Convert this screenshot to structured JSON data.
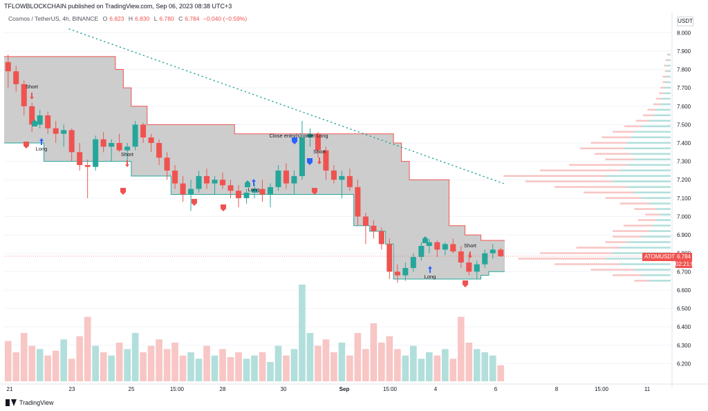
{
  "header": {
    "publisher": "TFLOWBLOCKCHAIN published on TradingView.com, Sep 06, 2023 08:38 UTC+3"
  },
  "symbol_bar": {
    "name": "Cosmos / TetherUS, 4h, BINANCE",
    "o_label": "O",
    "o_value": "6.823",
    "h_label": "H",
    "h_value": "6.830",
    "l_label": "L",
    "l_value": "6.780",
    "c_label": "C",
    "c_value": "6.784",
    "change": "−0.040 (−0.59%)"
  },
  "currency": "USDT",
  "price_tag": {
    "symbol": "ATOMUSDT",
    "price": "6.784",
    "countdown": "02:21:54"
  },
  "footer": {
    "brand": "TradingView"
  },
  "colors": {
    "up": "#26a69a",
    "down": "#ef5350",
    "channel_fill": "#c4c4c4",
    "trend_dots": "#26a69a",
    "vol_up": "#b2dfdb",
    "vol_down": "#f7c6c5"
  },
  "chart_data": {
    "type": "candlestick",
    "y_axis": {
      "range": [
        6.1,
        8.05
      ],
      "ticks": [
        "8.000",
        "7.900",
        "7.800",
        "7.700",
        "7.600",
        "7.500",
        "7.400",
        "7.300",
        "7.200",
        "7.100",
        "7.000",
        "6.900",
        "6.800",
        "6.700",
        "6.600",
        "6.500",
        "6.400",
        "6.300",
        "6.200"
      ]
    },
    "x_axis": {
      "tick_labels": [
        "21",
        "23",
        "25",
        "15:00",
        "28",
        "30",
        "Sep",
        "15:00",
        "4",
        "6",
        "8",
        "15:00",
        "11"
      ]
    },
    "annotations": [
      "Short",
      "Long",
      "Short",
      "Long",
      "Close entry(s) order Long",
      "Short",
      "Long",
      "Short"
    ],
    "candles": [
      [
        7.84,
        7.88,
        7.7,
        7.79
      ],
      [
        7.79,
        7.82,
        7.68,
        7.72
      ],
      [
        7.72,
        7.74,
        7.55,
        7.6
      ],
      [
        7.6,
        7.62,
        7.46,
        7.5
      ],
      [
        7.5,
        7.58,
        7.48,
        7.55
      ],
      [
        7.55,
        7.57,
        7.45,
        7.48
      ],
      [
        7.48,
        7.52,
        7.4,
        7.45
      ],
      [
        7.45,
        7.5,
        7.38,
        7.47
      ],
      [
        7.47,
        7.48,
        7.3,
        7.35
      ],
      [
        7.35,
        7.4,
        7.25,
        7.28
      ],
      [
        7.28,
        7.31,
        7.1,
        7.27
      ],
      [
        7.27,
        7.44,
        7.25,
        7.42
      ],
      [
        7.42,
        7.46,
        7.35,
        7.38
      ],
      [
        7.38,
        7.42,
        7.3,
        7.4
      ],
      [
        7.4,
        7.45,
        7.35,
        7.36
      ],
      [
        7.36,
        7.4,
        7.28,
        7.38
      ],
      [
        7.38,
        7.52,
        7.36,
        7.5
      ],
      [
        7.5,
        7.51,
        7.4,
        7.43
      ],
      [
        7.43,
        7.45,
        7.35,
        7.4
      ],
      [
        7.4,
        7.42,
        7.28,
        7.32
      ],
      [
        7.32,
        7.35,
        7.2,
        7.25
      ],
      [
        7.25,
        7.28,
        7.15,
        7.18
      ],
      [
        7.18,
        7.22,
        7.08,
        7.12
      ],
      [
        7.12,
        7.2,
        7.03,
        7.15
      ],
      [
        7.15,
        7.25,
        7.13,
        7.22
      ],
      [
        7.22,
        7.26,
        7.15,
        7.18
      ],
      [
        7.18,
        7.22,
        7.12,
        7.2
      ],
      [
        7.2,
        7.24,
        7.15,
        7.17
      ],
      [
        7.17,
        7.2,
        7.1,
        7.14
      ],
      [
        7.14,
        7.17,
        7.05,
        7.1
      ],
      [
        7.1,
        7.15,
        7.07,
        7.13
      ],
      [
        7.13,
        7.18,
        7.1,
        7.15
      ],
      [
        7.15,
        7.2,
        7.08,
        7.12
      ],
      [
        7.12,
        7.18,
        7.05,
        7.16
      ],
      [
        7.16,
        7.28,
        7.14,
        7.25
      ],
      [
        7.25,
        7.29,
        7.15,
        7.18
      ],
      [
        7.18,
        7.25,
        7.12,
        7.22
      ],
      [
        7.22,
        7.52,
        7.2,
        7.43
      ],
      [
        7.43,
        7.48,
        7.38,
        7.45
      ],
      [
        7.45,
        7.46,
        7.32,
        7.36
      ],
      [
        7.36,
        7.38,
        7.2,
        7.25
      ],
      [
        7.25,
        7.28,
        7.18,
        7.2
      ],
      [
        7.2,
        7.25,
        7.1,
        7.22
      ],
      [
        7.22,
        7.26,
        7.14,
        7.16
      ],
      [
        7.16,
        7.2,
        6.95,
        7.0
      ],
      [
        7.0,
        7.02,
        6.85,
        6.95
      ],
      [
        6.95,
        6.98,
        6.88,
        6.92
      ],
      [
        6.92,
        6.94,
        6.82,
        6.85
      ],
      [
        6.85,
        6.88,
        6.66,
        6.7
      ],
      [
        6.7,
        6.74,
        6.64,
        6.68
      ],
      [
        6.68,
        6.75,
        6.65,
        6.72
      ],
      [
        6.72,
        6.8,
        6.7,
        6.78
      ],
      [
        6.78,
        6.86,
        6.76,
        6.84
      ],
      [
        6.84,
        6.88,
        6.8,
        6.86
      ],
      [
        6.86,
        6.87,
        6.78,
        6.82
      ],
      [
        6.82,
        6.86,
        6.79,
        6.85
      ],
      [
        6.85,
        6.88,
        6.8,
        6.81
      ],
      [
        6.81,
        6.84,
        6.72,
        6.75
      ],
      [
        6.75,
        6.8,
        6.68,
        6.7
      ],
      [
        6.7,
        6.76,
        6.66,
        6.74
      ],
      [
        6.74,
        6.82,
        6.72,
        6.8
      ],
      [
        6.8,
        6.85,
        6.77,
        6.82
      ],
      [
        6.82,
        6.83,
        6.78,
        6.784
      ]
    ],
    "volume": [
      0.25,
      0.18,
      0.3,
      0.22,
      0.2,
      0.16,
      0.19,
      0.26,
      0.14,
      0.28,
      0.4,
      0.22,
      0.18,
      0.16,
      0.24,
      0.2,
      0.3,
      0.18,
      0.22,
      0.26,
      0.2,
      0.24,
      0.16,
      0.18,
      0.14,
      0.22,
      0.16,
      0.2,
      0.15,
      0.18,
      0.14,
      0.16,
      0.18,
      0.12,
      0.22,
      0.16,
      0.2,
      0.6,
      0.3,
      0.22,
      0.26,
      0.18,
      0.24,
      0.16,
      0.3,
      0.2,
      0.36,
      0.24,
      0.28,
      0.2,
      0.16,
      0.22,
      0.14,
      0.18,
      0.16,
      0.2,
      0.14,
      0.4,
      0.24,
      0.2,
      0.18,
      0.16,
      0.1
    ],
    "channel": {
      "upper": [
        7.87,
        7.87,
        7.87,
        7.87,
        7.87,
        7.87,
        7.87,
        7.87,
        7.87,
        7.87,
        7.87,
        7.87,
        7.87,
        7.87,
        7.8,
        7.7,
        7.6,
        7.6,
        7.5,
        7.5,
        7.5,
        7.5,
        7.5,
        7.5,
        7.5,
        7.5,
        7.5,
        7.5,
        7.5,
        7.45,
        7.45,
        7.45,
        7.45,
        7.45,
        7.45,
        7.45,
        7.45,
        7.45,
        7.45,
        7.45,
        7.45,
        7.45,
        7.45,
        7.45,
        7.45,
        7.45,
        7.45,
        7.45,
        7.45,
        7.4,
        7.3,
        7.2,
        7.2,
        7.2,
        7.2,
        7.2,
        6.95,
        6.95,
        6.9,
        6.9,
        6.87,
        6.87,
        6.87
      ],
      "lower": [
        7.4,
        7.4,
        7.4,
        7.4,
        7.4,
        7.3,
        7.3,
        7.3,
        7.3,
        7.3,
        7.3,
        7.3,
        7.3,
        7.3,
        7.3,
        7.3,
        7.22,
        7.22,
        7.22,
        7.22,
        7.22,
        7.12,
        7.12,
        7.12,
        7.12,
        7.12,
        7.12,
        7.12,
        7.12,
        7.12,
        7.12,
        7.12,
        7.12,
        7.12,
        7.12,
        7.12,
        7.12,
        7.12,
        7.12,
        7.12,
        7.12,
        7.12,
        7.12,
        7.12,
        6.95,
        6.95,
        6.92,
        6.92,
        6.85,
        6.66,
        6.66,
        6.66,
        6.66,
        6.66,
        6.66,
        6.66,
        6.66,
        6.66,
        6.66,
        6.66,
        6.68,
        6.7,
        6.7
      ]
    },
    "trendline": [
      [
        8.02,
        0
      ],
      [
        7.18,
        1
      ]
    ],
    "volume_profile": {
      "price_levels": [
        7.88,
        7.85,
        7.82,
        7.79,
        7.76,
        7.73,
        7.7,
        7.67,
        7.64,
        7.61,
        7.58,
        7.55,
        7.52,
        7.49,
        7.46,
        7.43,
        7.4,
        7.37,
        7.34,
        7.31,
        7.28,
        7.25,
        7.22,
        7.19,
        7.16,
        7.13,
        7.1,
        7.07,
        7.04,
        7.01,
        6.98,
        6.95,
        6.92,
        6.89,
        6.86,
        6.83,
        6.8,
        6.77,
        6.74,
        6.71,
        6.68,
        6.65
      ],
      "up": [
        3,
        4,
        5,
        5,
        6,
        7,
        8,
        10,
        12,
        14,
        20,
        24,
        30,
        40,
        50,
        55,
        60,
        65,
        55,
        50,
        60,
        70,
        90,
        80,
        60,
        50,
        40,
        30,
        20,
        15,
        20,
        25,
        30,
        40,
        60,
        70,
        80,
        90,
        70,
        50,
        40,
        30
      ],
      "down": [
        2,
        3,
        4,
        3,
        5,
        4,
        6,
        6,
        8,
        10,
        12,
        14,
        18,
        24,
        30,
        40,
        50,
        60,
        50,
        40,
        80,
        110,
        140,
        120,
        100,
        70,
        50,
        40,
        30,
        20,
        25,
        40,
        50,
        40,
        30,
        60,
        100,
        120,
        90,
        60,
        40,
        20
      ]
    }
  }
}
